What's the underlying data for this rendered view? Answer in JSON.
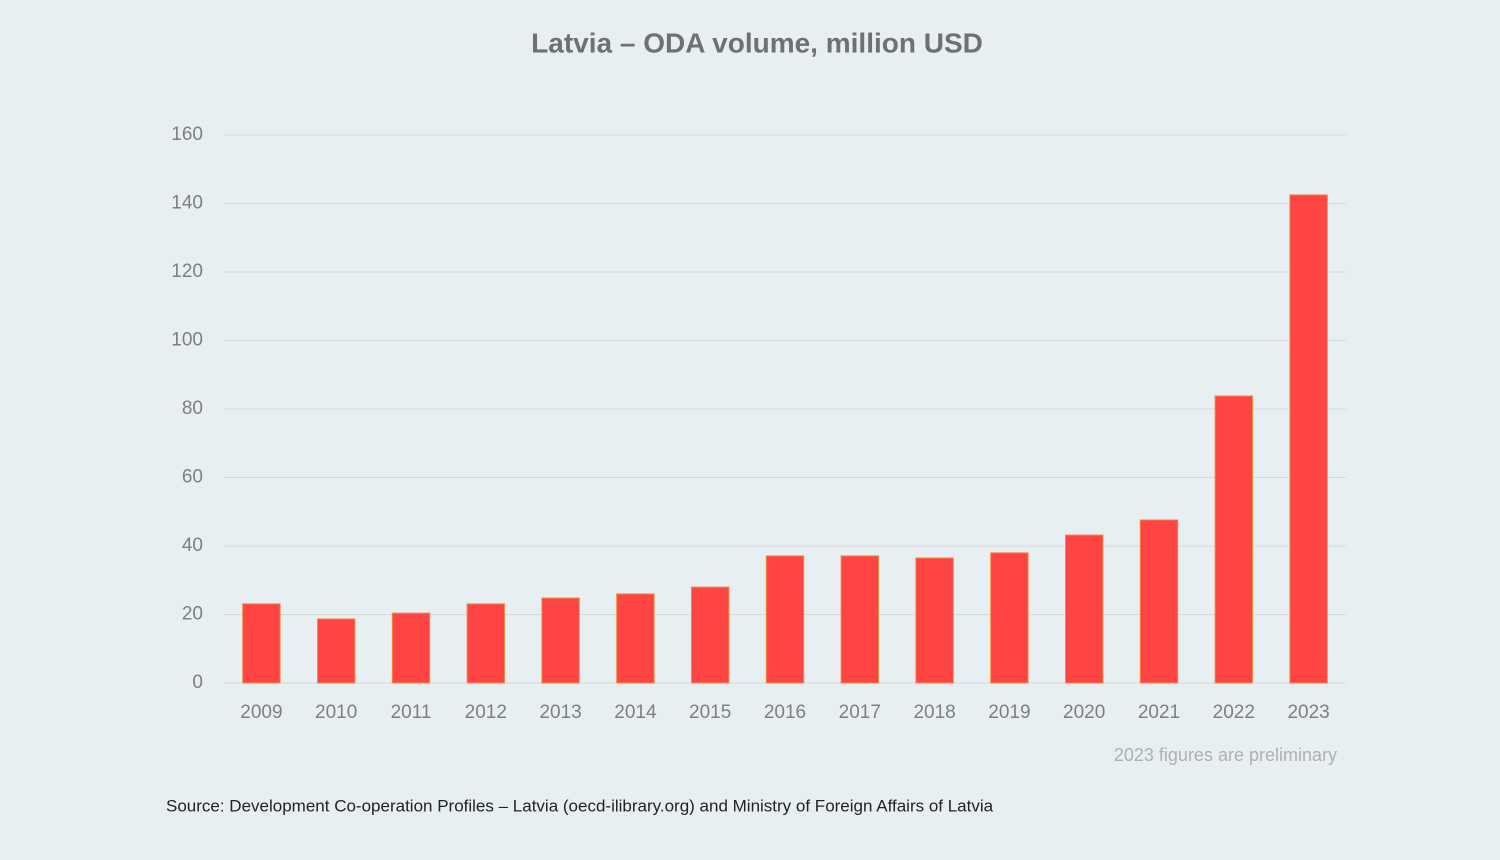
{
  "chart_data": {
    "type": "bar",
    "title": "Latvia – ODA volume, million USD",
    "categories": [
      "2009",
      "2010",
      "2011",
      "2012",
      "2013",
      "2014",
      "2015",
      "2016",
      "2017",
      "2018",
      "2019",
      "2020",
      "2021",
      "2022",
      "2023"
    ],
    "values": [
      23.1,
      18.7,
      20.4,
      23.1,
      24.8,
      26,
      28,
      37.1,
      37.1,
      36.5,
      38,
      43.2,
      47.6,
      83.8,
      142.5
    ],
    "color": "#ff4444",
    "ylim": [
      0,
      160
    ],
    "yticks": [
      0,
      20,
      40,
      60,
      80,
      100,
      120,
      140,
      160
    ],
    "grid": true,
    "note": "2023 figures are preliminary",
    "source": "Source: Development Co-operation Profiles – Latvia (oecd-ilibrary.org) and Ministry of Foreign Affairs of Latvia"
  }
}
